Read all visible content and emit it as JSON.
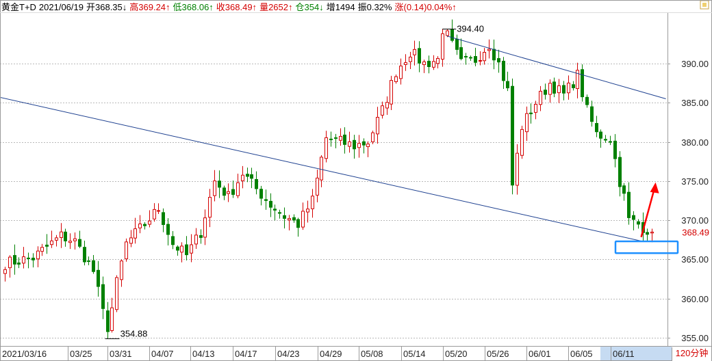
{
  "header": {
    "instrument": "黄金T+D",
    "date": "2021/06/19",
    "open": "开368.35↓",
    "high": "高369.24↑",
    "low": "低368.06↑",
    "close": "收368.49↑",
    "volume": "量2652↑",
    "position": "仓354↓",
    "increase": "增1494",
    "amplitude": "振0.32%",
    "change": "涨(0.14)0.04%↑"
  },
  "timeframe": "120分钟",
  "colors": {
    "up": "#d40000",
    "down": "#008000",
    "trendline": "#1c3f8f",
    "highlight": "#1e90ff",
    "arrow": "#ff0000"
  },
  "chart_data": {
    "type": "candlestick",
    "y_ticks": [
      "355.00",
      "360.00",
      "365.00",
      "370.00",
      "375.00",
      "380.00",
      "385.00",
      "390.00"
    ],
    "ylim": [
      354,
      397
    ],
    "x_ticks": [
      "2021/03/16",
      "03/25",
      "03/31",
      "04/07",
      "04/13",
      "04/17",
      "04/23",
      "04/29",
      "05/08",
      "05/14",
      "05/20",
      "05/26",
      "06/01",
      "06/05",
      "06/11"
    ],
    "last_price_label": "368.49",
    "last_price": 368.49,
    "max_label": "394.40",
    "max_value": 394.4,
    "max_index": 94,
    "min_label": "354.88",
    "min_value": 354.88,
    "min_index": 22,
    "anchors": [
      [
        0,
        364.5
      ],
      [
        6,
        365.2
      ],
      [
        12,
        368.0
      ],
      [
        15,
        367.3
      ],
      [
        19,
        363.5
      ],
      [
        22,
        355.6
      ],
      [
        24,
        362.0
      ],
      [
        26,
        367.0
      ],
      [
        30,
        369.5
      ],
      [
        33,
        371.5
      ],
      [
        36,
        367.0
      ],
      [
        39,
        365.5
      ],
      [
        42,
        368.5
      ],
      [
        45,
        375.0
      ],
      [
        48,
        373.0
      ],
      [
        51,
        376.0
      ],
      [
        54,
        374.0
      ],
      [
        57,
        372.0
      ],
      [
        60,
        370.5
      ],
      [
        63,
        369.5
      ],
      [
        66,
        372.5
      ],
      [
        69,
        380.5
      ],
      [
        72,
        380.0
      ],
      [
        75,
        379.5
      ],
      [
        78,
        380.0
      ],
      [
        81,
        384.0
      ],
      [
        84,
        389.0
      ],
      [
        87,
        391.5
      ],
      [
        90,
        390.0
      ],
      [
        93,
        390.5
      ],
      [
        95,
        393.5
      ],
      [
        98,
        390.0
      ],
      [
        101,
        390.5
      ],
      [
        104,
        392.5
      ],
      [
        106,
        390.0
      ],
      [
        108,
        386.5
      ],
      [
        109,
        374.5
      ],
      [
        111,
        382.0
      ],
      [
        114,
        385.0
      ],
      [
        117,
        387.5
      ],
      [
        120,
        386.0
      ],
      [
        123,
        388.5
      ],
      [
        125,
        384.0
      ],
      [
        127,
        381.0
      ],
      [
        130,
        380.5
      ],
      [
        132,
        375.0
      ],
      [
        133,
        373.0
      ],
      [
        134,
        370.0
      ],
      [
        136,
        369.5
      ],
      [
        139,
        368.49
      ]
    ],
    "trend_lines": [
      {
        "name": "",
        "points": [
          [
            -56,
            393.0
          ],
          [
            137,
            367.3
          ]
        ]
      },
      {
        "name": "",
        "points": [
          [
            95,
            393.5
          ],
          [
            142,
            385.5
          ]
        ]
      }
    ],
    "support_zone": [
      365.8,
      367.3
    ],
    "arrow": {
      "from": [
        137,
        367.5
      ],
      "to": [
        139.5,
        375.0
      ]
    }
  }
}
